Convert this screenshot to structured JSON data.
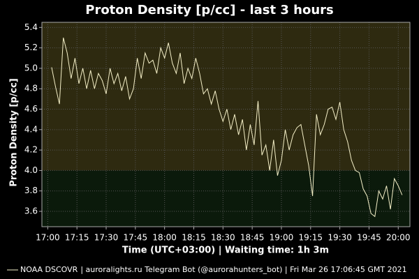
{
  "chart_data": {
    "type": "line",
    "title": "Proton Density [p/cc] - last 3 hours",
    "xlabel": "Time (UTC+03:00) | Waiting time: 1h 3m",
    "ylabel": "Proton Density [p/cc]",
    "footer": "| auroralights.ru Telegram Bot (@aurorahunters_bot) | Fri Mar 26 17:06:45 GMT 2021",
    "xlim": [
      "16:57",
      "20:06"
    ],
    "xticks": [
      "17:00",
      "17:15",
      "17:30",
      "17:45",
      "18:00",
      "18:15",
      "18:30",
      "18:45",
      "19:00",
      "19:15",
      "19:30",
      "19:45",
      "20:00"
    ],
    "ylim": [
      3.45,
      5.45
    ],
    "yticks": [
      {
        "value": 3.6,
        "label": "3.6"
      },
      {
        "value": 3.8,
        "label": "3.8"
      },
      {
        "value": 4.0,
        "label": "4.0"
      },
      {
        "value": 4.2,
        "label": "4.2"
      },
      {
        "value": 4.4,
        "label": "4.4"
      },
      {
        "value": 4.6,
        "label": "4.6"
      },
      {
        "value": 4.8,
        "label": "4.8"
      },
      {
        "value": 5.0,
        "label": "5.0"
      },
      {
        "value": 5.2,
        "label": "5.2"
      },
      {
        "value": 5.4,
        "label": "5.4"
      }
    ],
    "grid": true,
    "bands": [
      {
        "from": 4.0,
        "to": 5.45,
        "color": "#2e2a10"
      },
      {
        "from": 3.45,
        "to": 4.0,
        "color": "#0b1a0b"
      }
    ],
    "x": [
      "17:02",
      "17:04",
      "17:06",
      "17:08",
      "17:10",
      "17:12",
      "17:14",
      "17:16",
      "17:18",
      "17:20",
      "17:22",
      "17:24",
      "17:26",
      "17:28",
      "17:30",
      "17:32",
      "17:34",
      "17:36",
      "17:38",
      "17:40",
      "17:42",
      "17:44",
      "17:46",
      "17:48",
      "17:50",
      "17:52",
      "17:54",
      "17:56",
      "17:58",
      "18:00",
      "18:02",
      "18:04",
      "18:06",
      "18:08",
      "18:10",
      "18:12",
      "18:14",
      "18:16",
      "18:18",
      "18:20",
      "18:22",
      "18:24",
      "18:26",
      "18:28",
      "18:30",
      "18:32",
      "18:34",
      "18:36",
      "18:38",
      "18:40",
      "18:42",
      "18:44",
      "18:46",
      "18:48",
      "18:50",
      "18:52",
      "18:54",
      "18:56",
      "18:58",
      "19:00",
      "19:02",
      "19:04",
      "19:06",
      "19:08",
      "19:10",
      "19:12",
      "19:14",
      "19:16",
      "19:18",
      "19:20",
      "19:22",
      "19:24",
      "19:26",
      "19:28",
      "19:30",
      "19:32",
      "19:34",
      "19:36",
      "19:38",
      "19:40",
      "19:42",
      "19:44",
      "19:46",
      "19:48",
      "19:50",
      "19:52",
      "19:54",
      "19:56",
      "19:58",
      "20:00",
      "20:02"
    ],
    "series": [
      {
        "name": "NOAA DSCOVR",
        "color": "#f5f0c8",
        "values": [
          5.01,
          4.82,
          4.65,
          5.3,
          5.15,
          4.9,
          5.1,
          4.85,
          5.0,
          4.8,
          4.98,
          4.8,
          4.95,
          4.88,
          4.75,
          5.0,
          4.85,
          4.95,
          4.78,
          4.92,
          4.7,
          4.8,
          5.1,
          4.9,
          5.15,
          5.05,
          5.08,
          4.95,
          5.2,
          5.1,
          5.25,
          5.05,
          4.95,
          5.15,
          4.85,
          5.0,
          4.9,
          5.1,
          4.95,
          4.75,
          4.8,
          4.65,
          4.78,
          4.6,
          4.48,
          4.6,
          4.4,
          4.55,
          4.35,
          4.5,
          4.2,
          4.45,
          4.25,
          4.68,
          4.15,
          4.25,
          4.0,
          4.3,
          3.95,
          4.1,
          4.4,
          4.2,
          4.35,
          4.42,
          4.45,
          4.25,
          4.05,
          3.75,
          4.55,
          4.35,
          4.45,
          4.6,
          4.62,
          4.5,
          4.67,
          4.4,
          4.28,
          4.1,
          4.0,
          3.98,
          3.82,
          3.75,
          3.58,
          3.55,
          3.8,
          3.72,
          3.85,
          3.62,
          3.92,
          3.85,
          3.76
        ]
      }
    ]
  }
}
